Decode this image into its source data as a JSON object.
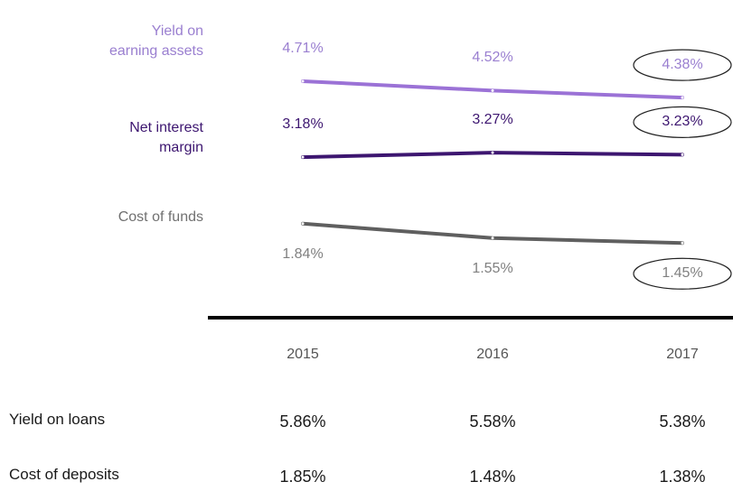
{
  "chart_data": {
    "type": "line",
    "categories": [
      "2015",
      "2016",
      "2017"
    ],
    "ylim": [
      0,
      6
    ],
    "series": [
      {
        "name": "Yield on earning assets",
        "color": "#9b72d6",
        "values": [
          4.71,
          4.52,
          4.38
        ],
        "value_labels": [
          "4.71%",
          "4.52%",
          "4.38%"
        ]
      },
      {
        "name": "Net interest margin",
        "color": "#3d1670",
        "values": [
          3.18,
          3.27,
          3.23
        ],
        "value_labels": [
          "3.18%",
          "3.27%",
          "3.23%"
        ]
      },
      {
        "name": "Cost of funds",
        "color": "#5f5f5f",
        "values": [
          1.84,
          1.55,
          1.45
        ],
        "value_labels": [
          "1.84%",
          "1.55%",
          "1.45%"
        ]
      }
    ]
  },
  "table": {
    "rows": [
      [
        "Yield on loans",
        "5.86%",
        "5.58%",
        "5.38%"
      ],
      [
        "Cost of deposits",
        "1.85%",
        "1.48%",
        "1.38%"
      ]
    ]
  }
}
